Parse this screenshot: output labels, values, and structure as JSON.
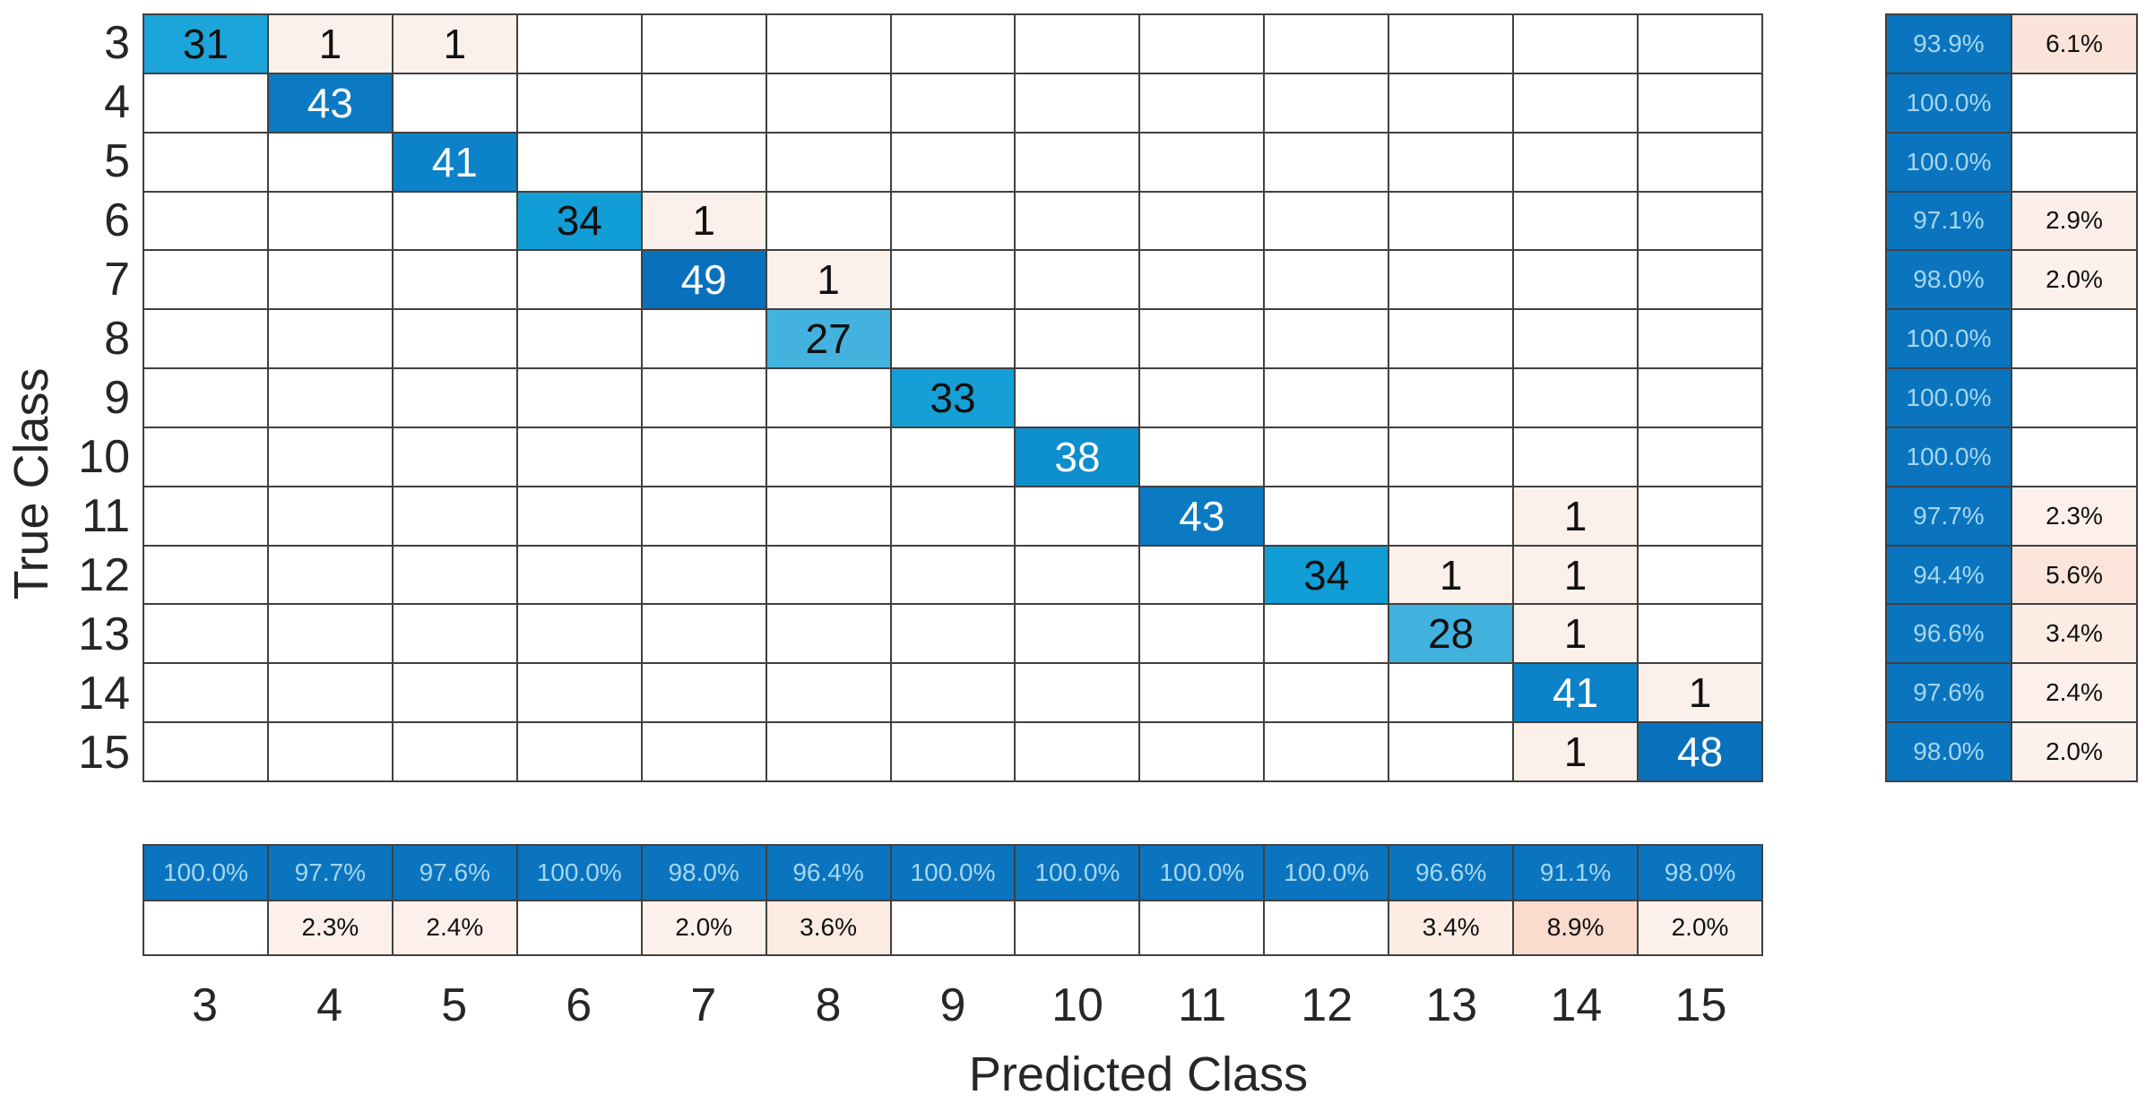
{
  "chart_data": {
    "type": "heatmap",
    "subtype": "confusion_matrix",
    "xlabel": "Predicted Class",
    "ylabel": "True Class",
    "classes": [
      "3",
      "4",
      "5",
      "6",
      "7",
      "8",
      "9",
      "10",
      "11",
      "12",
      "13",
      "14",
      "15"
    ],
    "matrix": [
      [
        31,
        1,
        1,
        0,
        0,
        0,
        0,
        0,
        0,
        0,
        0,
        0,
        0
      ],
      [
        0,
        43,
        0,
        0,
        0,
        0,
        0,
        0,
        0,
        0,
        0,
        0,
        0
      ],
      [
        0,
        0,
        41,
        0,
        0,
        0,
        0,
        0,
        0,
        0,
        0,
        0,
        0
      ],
      [
        0,
        0,
        0,
        34,
        1,
        0,
        0,
        0,
        0,
        0,
        0,
        0,
        0
      ],
      [
        0,
        0,
        0,
        0,
        49,
        1,
        0,
        0,
        0,
        0,
        0,
        0,
        0
      ],
      [
        0,
        0,
        0,
        0,
        0,
        27,
        0,
        0,
        0,
        0,
        0,
        0,
        0
      ],
      [
        0,
        0,
        0,
        0,
        0,
        0,
        33,
        0,
        0,
        0,
        0,
        0,
        0
      ],
      [
        0,
        0,
        0,
        0,
        0,
        0,
        0,
        38,
        0,
        0,
        0,
        0,
        0
      ],
      [
        0,
        0,
        0,
        0,
        0,
        0,
        0,
        0,
        43,
        0,
        0,
        1,
        0
      ],
      [
        0,
        0,
        0,
        0,
        0,
        0,
        0,
        0,
        0,
        34,
        1,
        1,
        0
      ],
      [
        0,
        0,
        0,
        0,
        0,
        0,
        0,
        0,
        0,
        0,
        28,
        1,
        0
      ],
      [
        0,
        0,
        0,
        0,
        0,
        0,
        0,
        0,
        0,
        0,
        0,
        41,
        1
      ],
      [
        0,
        0,
        0,
        0,
        0,
        0,
        0,
        0,
        0,
        0,
        0,
        1,
        48
      ]
    ],
    "row_summary": {
      "correct": [
        "93.9%",
        "100.0%",
        "100.0%",
        "97.1%",
        "98.0%",
        "100.0%",
        "100.0%",
        "100.0%",
        "97.7%",
        "94.4%",
        "96.6%",
        "97.6%",
        "98.0%"
      ],
      "incorrect": [
        "6.1%",
        "",
        "",
        "2.9%",
        "2.0%",
        "",
        "",
        "",
        "2.3%",
        "5.6%",
        "3.4%",
        "2.4%",
        "2.0%"
      ]
    },
    "column_summary": {
      "correct": [
        "100.0%",
        "97.7%",
        "97.6%",
        "100.0%",
        "98.0%",
        "96.4%",
        "100.0%",
        "100.0%",
        "100.0%",
        "100.0%",
        "96.6%",
        "91.1%",
        "98.0%"
      ],
      "incorrect": [
        "",
        "2.3%",
        "2.4%",
        "",
        "2.0%",
        "3.6%",
        "",
        "",
        "",
        "",
        "3.4%",
        "8.9%",
        "2.0%"
      ]
    }
  },
  "styles": {
    "grid_line": "#404040",
    "empty_cell_bg": "#ffffff",
    "offdiag_cell_bg": "#fcf0eb",
    "offdiag_cell_fg": "#111111",
    "summary_blue_bg": "#0b74bf",
    "summary_blue_fg": "#a5d7ee",
    "summary_blank_bg": "#ffffff",
    "diag_colors": {
      "27": [
        "#44b2df",
        "#111111"
      ],
      "28": [
        "#41b1de",
        "#111111"
      ],
      "31": [
        "#1ca5da",
        "#111111"
      ],
      "33": [
        "#14a0d6",
        "#111111"
      ],
      "34": [
        "#119dd5",
        "#111111"
      ],
      "38": [
        "#0d8ecd",
        "#ffffff"
      ],
      "41": [
        "#0c82c8",
        "#ffffff"
      ],
      "43": [
        "#0b7ac2",
        "#ffffff"
      ],
      "48": [
        "#0971bc",
        "#ffffff"
      ],
      "49": [
        "#0970bb",
        "#ffffff"
      ]
    },
    "pink_shades": {
      "2.0%": "#fdf1ec",
      "2.3%": "#fdf0eb",
      "2.4%": "#fdf0eb",
      "2.9%": "#fceee8",
      "3.4%": "#fcece4",
      "3.6%": "#fcebe3",
      "5.6%": "#fbe5da",
      "6.1%": "#fae3d8",
      "8.9%": "#f9dccd"
    }
  }
}
